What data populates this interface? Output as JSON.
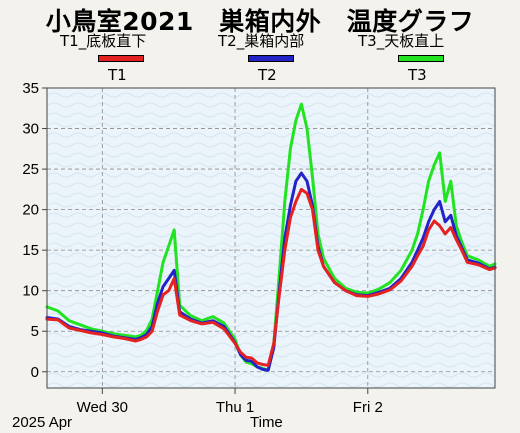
{
  "title": "小鳥室2021　巣箱内外　温度グラフ",
  "legend": [
    {
      "key": "t1",
      "label": "T1_底板直下",
      "short": "T1",
      "color": "#e52222"
    },
    {
      "key": "t2",
      "label": "T2_巣箱内部",
      "short": "T2",
      "color": "#2323c8"
    },
    {
      "key": "t3",
      "label": "T3_天板直上",
      "short": "T3",
      "color": "#22e322"
    }
  ],
  "footer": {
    "year_month": "2025 Apr",
    "axis_title": "Time"
  },
  "chart_data": {
    "type": "line",
    "title": "小鳥室2021　巣箱内外　温度グラフ",
    "xlabel": "Time",
    "ylabel": "",
    "ylim": [
      -2,
      35
    ],
    "yticks": [
      0,
      5,
      10,
      15,
      20,
      25,
      30,
      35
    ],
    "x_domain": [
      "2025-04-29 14:00",
      "2025-05-02 23:00"
    ],
    "xticks": [
      {
        "label": "Wed 30",
        "x": "2025-04-30 00:00"
      },
      {
        "label": "Thu 1",
        "x": "2025-05-01 00:00"
      },
      {
        "label": "Fri 2",
        "x": "2025-05-02 00:00"
      }
    ],
    "grid": true,
    "legend_position": "top",
    "series": [
      {
        "name": "T1_底板直下",
        "color": "#e52222",
        "x": [
          "2025-04-29 14:00",
          "2025-04-29 16:00",
          "2025-04-29 18:00",
          "2025-04-29 20:00",
          "2025-04-29 22:00",
          "2025-04-30 00:00",
          "2025-04-30 02:00",
          "2025-04-30 04:00",
          "2025-04-30 06:00",
          "2025-04-30 07:00",
          "2025-04-30 08:00",
          "2025-04-30 09:00",
          "2025-04-30 10:00",
          "2025-04-30 11:00",
          "2025-04-30 12:00",
          "2025-04-30 13:00",
          "2025-04-30 14:00",
          "2025-04-30 16:00",
          "2025-04-30 18:00",
          "2025-04-30 20:00",
          "2025-04-30 22:00",
          "2025-05-01 00:00",
          "2025-05-01 01:00",
          "2025-05-01 02:00",
          "2025-05-01 03:00",
          "2025-05-01 04:00",
          "2025-05-01 05:00",
          "2025-05-01 06:00",
          "2025-05-01 07:00",
          "2025-05-01 08:00",
          "2025-05-01 09:00",
          "2025-05-01 10:00",
          "2025-05-01 11:00",
          "2025-05-01 12:00",
          "2025-05-01 13:00",
          "2025-05-01 14:00",
          "2025-05-01 15:00",
          "2025-05-01 16:00",
          "2025-05-01 18:00",
          "2025-05-01 20:00",
          "2025-05-01 22:00",
          "2025-05-02 00:00",
          "2025-05-02 02:00",
          "2025-05-02 04:00",
          "2025-05-02 06:00",
          "2025-05-02 08:00",
          "2025-05-02 09:00",
          "2025-05-02 10:00",
          "2025-05-02 11:00",
          "2025-05-02 12:00",
          "2025-05-02 13:00",
          "2025-05-02 14:00",
          "2025-05-02 15:00",
          "2025-05-02 16:00",
          "2025-05-02 17:00",
          "2025-05-02 18:00",
          "2025-05-02 20:00",
          "2025-05-02 22:00",
          "2025-05-02 23:00"
        ],
        "values": [
          6.5,
          6.4,
          5.4,
          5.1,
          4.8,
          4.6,
          4.3,
          4.1,
          3.8,
          4.0,
          4.3,
          5.0,
          7.5,
          9.5,
          10.0,
          11.5,
          7.0,
          6.3,
          5.9,
          6.1,
          5.3,
          3.5,
          2.4,
          1.8,
          1.7,
          1.1,
          0.9,
          0.8,
          3.5,
          9.5,
          15.0,
          19.0,
          21.0,
          22.5,
          22.0,
          20.0,
          15.0,
          13.0,
          11.0,
          10.0,
          9.4,
          9.3,
          9.6,
          10.1,
          11.2,
          13.0,
          14.3,
          15.5,
          17.5,
          18.6,
          18.0,
          17.0,
          17.8,
          16.3,
          15.0,
          13.5,
          13.2,
          12.6,
          12.8
        ]
      },
      {
        "name": "T2_巣箱内部",
        "color": "#2323c8",
        "x": [
          "2025-04-29 14:00",
          "2025-04-29 16:00",
          "2025-04-29 18:00",
          "2025-04-29 20:00",
          "2025-04-29 22:00",
          "2025-04-30 00:00",
          "2025-04-30 02:00",
          "2025-04-30 04:00",
          "2025-04-30 06:00",
          "2025-04-30 07:00",
          "2025-04-30 08:00",
          "2025-04-30 09:00",
          "2025-04-30 10:00",
          "2025-04-30 11:00",
          "2025-04-30 12:00",
          "2025-04-30 13:00",
          "2025-04-30 14:00",
          "2025-04-30 16:00",
          "2025-04-30 18:00",
          "2025-04-30 20:00",
          "2025-04-30 22:00",
          "2025-05-01 00:00",
          "2025-05-01 01:00",
          "2025-05-01 02:00",
          "2025-05-01 03:00",
          "2025-05-01 04:00",
          "2025-05-01 05:00",
          "2025-05-01 06:00",
          "2025-05-01 07:00",
          "2025-05-01 08:00",
          "2025-05-01 09:00",
          "2025-05-01 10:00",
          "2025-05-01 11:00",
          "2025-05-01 12:00",
          "2025-05-01 13:00",
          "2025-05-01 14:00",
          "2025-05-01 15:00",
          "2025-05-01 16:00",
          "2025-05-01 18:00",
          "2025-05-01 20:00",
          "2025-05-01 22:00",
          "2025-05-02 00:00",
          "2025-05-02 02:00",
          "2025-05-02 04:00",
          "2025-05-02 06:00",
          "2025-05-02 08:00",
          "2025-05-02 09:00",
          "2025-05-02 10:00",
          "2025-05-02 11:00",
          "2025-05-02 12:00",
          "2025-05-02 13:00",
          "2025-05-02 14:00",
          "2025-05-02 15:00",
          "2025-05-02 16:00",
          "2025-05-02 17:00",
          "2025-05-02 18:00",
          "2025-05-02 20:00",
          "2025-05-02 22:00",
          "2025-05-02 23:00"
        ],
        "values": [
          6.7,
          6.5,
          5.6,
          5.2,
          5.0,
          4.8,
          4.4,
          4.2,
          4.0,
          4.2,
          4.6,
          5.6,
          8.5,
          10.5,
          11.5,
          12.5,
          7.4,
          6.5,
          6.0,
          6.3,
          5.6,
          3.6,
          2.1,
          1.4,
          1.3,
          0.6,
          0.3,
          0.2,
          3.0,
          10.0,
          16.5,
          20.5,
          23.5,
          24.5,
          23.5,
          20.5,
          15.5,
          13.0,
          11.0,
          10.0,
          9.5,
          9.4,
          9.8,
          10.3,
          11.5,
          13.5,
          15.0,
          16.5,
          18.5,
          20.0,
          21.0,
          18.5,
          19.3,
          16.8,
          15.3,
          13.8,
          13.4,
          12.7,
          12.9
        ]
      },
      {
        "name": "T3_天板直上",
        "color": "#22e322",
        "x": [
          "2025-04-29 14:00",
          "2025-04-29 16:00",
          "2025-04-29 18:00",
          "2025-04-29 20:00",
          "2025-04-29 22:00",
          "2025-04-30 00:00",
          "2025-04-30 02:00",
          "2025-04-30 04:00",
          "2025-04-30 06:00",
          "2025-04-30 07:00",
          "2025-04-30 08:00",
          "2025-04-30 09:00",
          "2025-04-30 10:00",
          "2025-04-30 11:00",
          "2025-04-30 12:00",
          "2025-04-30 13:00",
          "2025-04-30 14:00",
          "2025-04-30 16:00",
          "2025-04-30 18:00",
          "2025-04-30 20:00",
          "2025-04-30 22:00",
          "2025-05-01 00:00",
          "2025-05-01 01:00",
          "2025-05-01 02:00",
          "2025-05-01 03:00",
          "2025-05-01 04:00",
          "2025-05-01 05:00",
          "2025-05-01 06:00",
          "2025-05-01 07:00",
          "2025-05-01 08:00",
          "2025-05-01 09:00",
          "2025-05-01 10:00",
          "2025-05-01 11:00",
          "2025-05-01 12:00",
          "2025-05-01 13:00",
          "2025-05-01 14:00",
          "2025-05-01 15:00",
          "2025-05-01 16:00",
          "2025-05-01 18:00",
          "2025-05-01 20:00",
          "2025-05-01 22:00",
          "2025-05-02 00:00",
          "2025-05-02 02:00",
          "2025-05-02 04:00",
          "2025-05-02 06:00",
          "2025-05-02 08:00",
          "2025-05-02 09:00",
          "2025-05-02 10:00",
          "2025-05-02 11:00",
          "2025-05-02 12:00",
          "2025-05-02 13:00",
          "2025-05-02 14:00",
          "2025-05-02 15:00",
          "2025-05-02 16:00",
          "2025-05-02 17:00",
          "2025-05-02 18:00",
          "2025-05-02 20:00",
          "2025-05-02 22:00",
          "2025-05-02 23:00"
        ],
        "values": [
          8.0,
          7.5,
          6.3,
          5.8,
          5.3,
          5.0,
          4.7,
          4.5,
          4.3,
          4.5,
          5.1,
          6.5,
          10.0,
          13.5,
          15.5,
          17.5,
          8.2,
          6.9,
          6.3,
          6.8,
          6.0,
          4.0,
          2.1,
          1.2,
          1.0,
          0.6,
          0.4,
          0.2,
          3.5,
          12.0,
          21.0,
          27.5,
          31.0,
          33.0,
          30.0,
          24.0,
          17.0,
          14.0,
          11.5,
          10.3,
          9.8,
          9.7,
          10.2,
          11.0,
          12.5,
          15.0,
          17.0,
          20.0,
          23.5,
          25.5,
          27.0,
          21.0,
          23.5,
          18.0,
          16.0,
          14.3,
          13.8,
          13.0,
          13.3
        ]
      }
    ]
  }
}
